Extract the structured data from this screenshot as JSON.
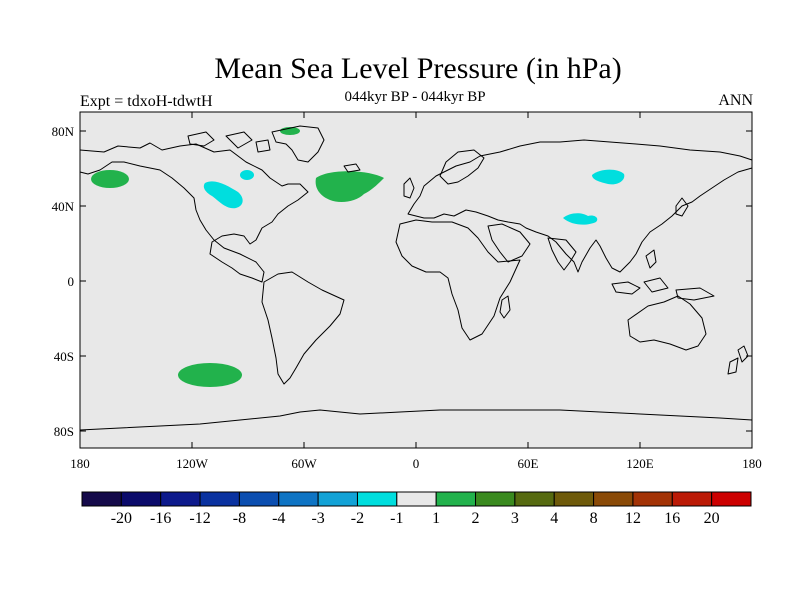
{
  "title": "Mean Sea Level Pressure (in hPa)",
  "subtitle": "044kyr BP - 044kyr BP",
  "experiment_label": "Expt = tdxoH-tdwtH",
  "period_label": "ANN",
  "map": {
    "background_color": "#e8e8e8",
    "coastline_color": "#000000",
    "lat_labels": [
      "80N",
      "40N",
      "0",
      "40S",
      "80S"
    ],
    "lon_labels": [
      "180",
      "120W",
      "60W",
      "0",
      "60E",
      "120E",
      "180"
    ],
    "anomalies": [
      {
        "name": "north-pacific-positive",
        "color": "#22b24c"
      },
      {
        "name": "south-pacific-positive",
        "color": "#22b24c"
      },
      {
        "name": "north-atlantic-positive",
        "color": "#22b24c"
      },
      {
        "name": "greenland-positive",
        "color": "#22b24c"
      },
      {
        "name": "western-north-america-negative",
        "color": "#00dede"
      },
      {
        "name": "hudson-bay-negative",
        "color": "#00dede"
      },
      {
        "name": "mongolia-negative",
        "color": "#00dede"
      },
      {
        "name": "tibet-negative",
        "color": "#00dede"
      }
    ]
  },
  "colorbar": {
    "colors": [
      "#150a4a",
      "#0b0b6b",
      "#0d1a8c",
      "#0a32a0",
      "#0b4eb0",
      "#0e74c4",
      "#12a2d6",
      "#00dede",
      "#e8e8e8",
      "#22b24c",
      "#3a8a1f",
      "#566a10",
      "#6e5a0a",
      "#8a4a07",
      "#a33306",
      "#bb1a06",
      "#cc0000"
    ],
    "labels": [
      "-20",
      "-16",
      "-12",
      "-8",
      "-4",
      "-3",
      "-2",
      "-1",
      "1",
      "2",
      "3",
      "4",
      "8",
      "12",
      "16",
      "20"
    ]
  }
}
